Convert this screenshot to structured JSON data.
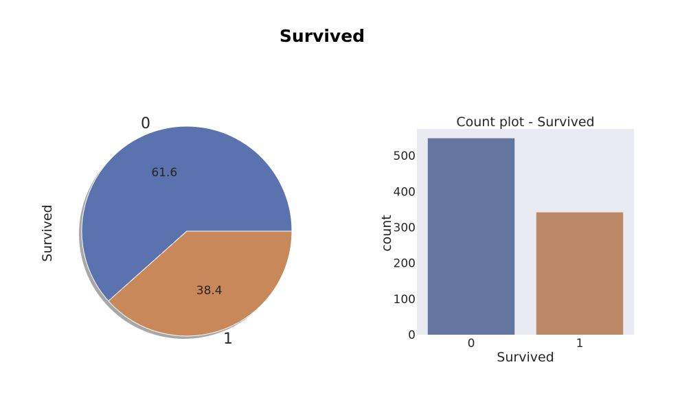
{
  "figure_title": "Survived",
  "chart_data": [
    {
      "type": "pie",
      "ylabel": "Survived",
      "labels": [
        "0",
        "1"
      ],
      "values": [
        61.6,
        38.4
      ],
      "value_labels": [
        "61.6",
        "38.4"
      ],
      "colors": [
        "#5a72ad",
        "#c8885a"
      ],
      "shadow": true
    },
    {
      "type": "bar",
      "title": "Count plot - Survived",
      "xlabel": "Survived",
      "ylabel": "count",
      "categories": [
        "0",
        "1"
      ],
      "values": [
        549,
        342
      ],
      "colors": [
        "#6475a0",
        "#bc8967"
      ],
      "ylim": [
        0,
        575
      ],
      "yticks": [
        0,
        100,
        200,
        300,
        400,
        500
      ],
      "background": "#eaeaf2",
      "grid": false
    }
  ]
}
